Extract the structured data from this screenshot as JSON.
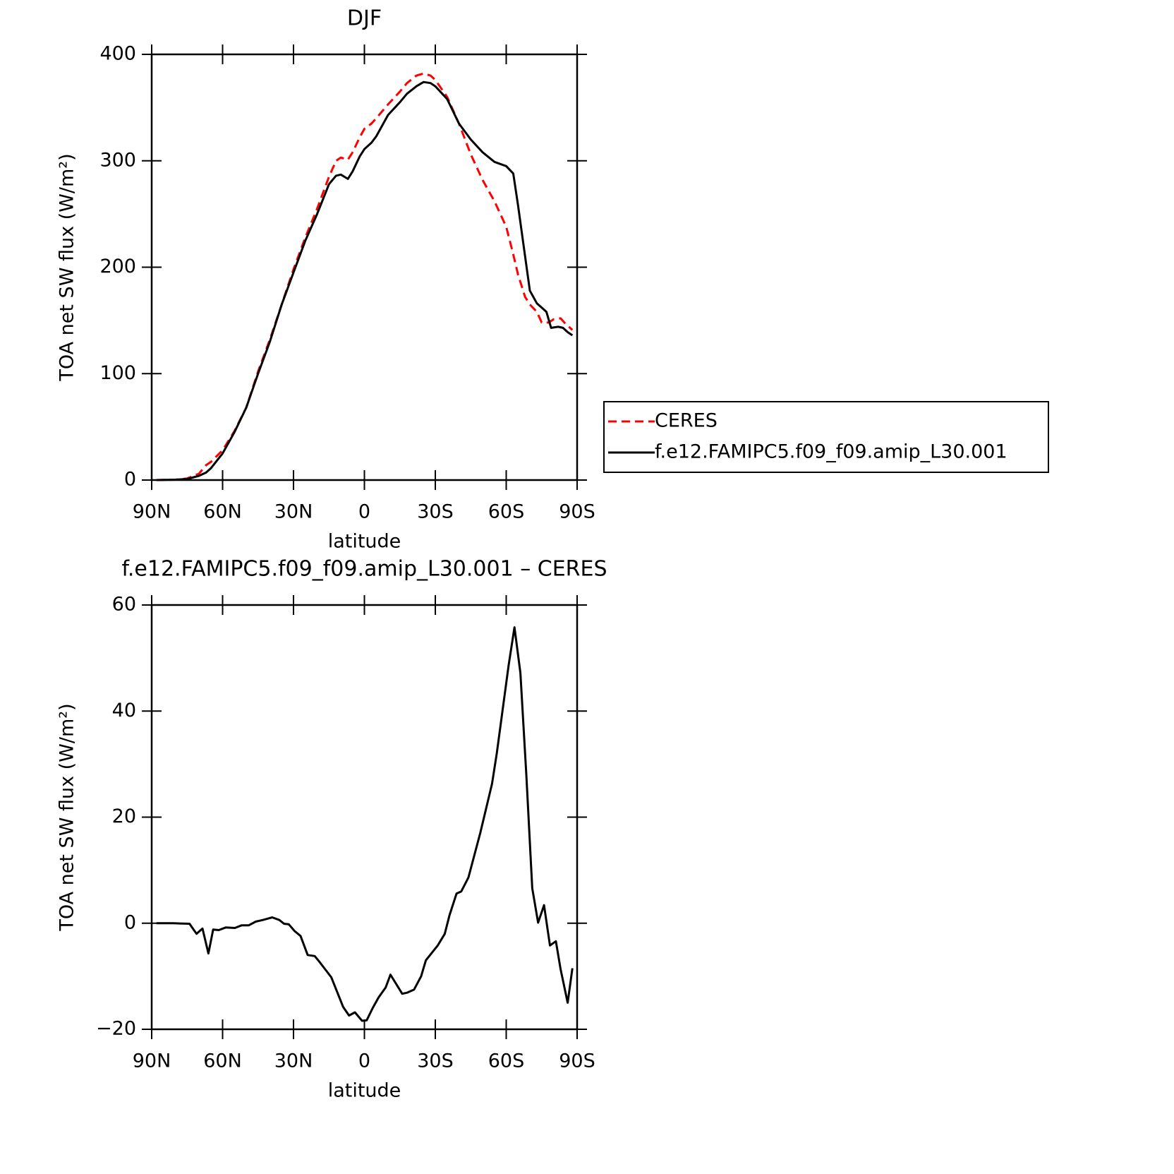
{
  "chart_data": [
    {
      "type": "line",
      "title": "DJF",
      "x_label": "latitude",
      "y_label": "TOA net SW flux (W/m²)",
      "xlim": [
        90,
        -90
      ],
      "xticks": [
        {
          "value": 90,
          "label": "90N"
        },
        {
          "value": 60,
          "label": "60N"
        },
        {
          "value": 30,
          "label": "30N"
        },
        0,
        {
          "value": -30,
          "label": "30S"
        },
        {
          "value": -60,
          "label": "60S"
        },
        {
          "value": -90,
          "label": "90S"
        }
      ],
      "ylim": [
        0,
        400
      ],
      "yticks": [
        0,
        100,
        200,
        300,
        400
      ],
      "legend": "outside-right",
      "series": [
        {
          "name": "CERES",
          "color": "#ff0000",
          "style": "dashed",
          "x": [
            88,
            80,
            75,
            70,
            67,
            65,
            60,
            55,
            50,
            45,
            40,
            35,
            30,
            25,
            20,
            15,
            12,
            10,
            7,
            5,
            2,
            0,
            -3,
            -5,
            -10,
            -15,
            -18,
            -22,
            -25,
            -28,
            -30,
            -35,
            -40,
            -45,
            -50,
            -55,
            -60,
            -63,
            -65,
            -68,
            -70,
            -73,
            -75,
            -78,
            -80,
            -83,
            -85,
            -88
          ],
          "values": [
            0,
            0.3,
            1.5,
            6,
            14,
            17,
            28,
            46,
            68,
            102,
            132,
            165,
            198,
            228,
            255,
            285,
            300,
            303,
            301,
            308,
            322,
            330,
            335,
            340,
            353,
            365,
            373,
            380,
            382,
            380,
            376,
            360,
            335,
            306,
            282,
            262,
            238,
            212,
            193,
            172,
            165,
            158,
            148,
            148,
            151,
            152,
            147,
            141
          ]
        },
        {
          "name": "f.e12.FAMIPC5.f09_f09.amip_L30.001",
          "color": "#000000",
          "style": "solid",
          "x": [
            88,
            80,
            75,
            70,
            67,
            65,
            60,
            55,
            50,
            45,
            40,
            35,
            30,
            25,
            20,
            15,
            12,
            10,
            7,
            5,
            2,
            0,
            -3,
            -5,
            -10,
            -15,
            -18,
            -22,
            -25,
            -28,
            -30,
            -35,
            -40,
            -45,
            -50,
            -55,
            -60,
            -63,
            -65,
            -68,
            -70,
            -73,
            -75,
            -77,
            -79,
            -82,
            -84,
            -86,
            -88
          ],
          "values": [
            0,
            0.3,
            1,
            4,
            7,
            11,
            25,
            45,
            68,
            100,
            130,
            165,
            195,
            225,
            250,
            278,
            286,
            287,
            283,
            290,
            304,
            311,
            317,
            323,
            343,
            355,
            363,
            370,
            374,
            373,
            370,
            358,
            335,
            320,
            308,
            299,
            295,
            288,
            258,
            210,
            178,
            166,
            162,
            158,
            143,
            144,
            143,
            139,
            136
          ]
        }
      ]
    },
    {
      "type": "line",
      "title": "f.e12.FAMIPC5.f09_f09.amip_L30.001 – CERES",
      "x_label": "latitude",
      "y_label": "TOA net SW flux (W/m²)",
      "xlim": [
        90,
        -90
      ],
      "xticks": [
        {
          "value": 90,
          "label": "90N"
        },
        {
          "value": 60,
          "label": "60N"
        },
        {
          "value": 30,
          "label": "30N"
        },
        0,
        {
          "value": -30,
          "label": "30S"
        },
        {
          "value": -60,
          "label": "60S"
        },
        {
          "value": -90,
          "label": "90S"
        }
      ],
      "ylim": [
        -20,
        60
      ],
      "yticks": [
        {
          "value": -20,
          "label": "−20"
        },
        0,
        20,
        40,
        60
      ],
      "series": [
        {
          "color": "#000000",
          "style": "solid",
          "x": [
            88,
            81,
            74,
            71,
            68.5,
            66,
            64,
            61.6,
            58.7,
            54.8,
            52,
            49,
            46,
            43,
            39,
            36,
            34,
            32,
            29.5,
            27,
            24,
            21,
            19,
            14,
            9,
            6.5,
            4,
            1,
            -1,
            -3.5,
            -6,
            -9,
            -11,
            -16,
            -18,
            -21,
            -24,
            -26,
            -31,
            -34,
            -36,
            -39,
            -41,
            -44,
            -49,
            -54,
            -56,
            -61,
            -63.5,
            -66,
            -68.5,
            -71,
            -73.5,
            -76,
            -78.5,
            -81,
            -83,
            -86,
            -88
          ],
          "values": [
            0,
            0,
            -0.1,
            -2,
            -1,
            -5.7,
            -1.2,
            -1.3,
            -0.8,
            -0.9,
            -0.4,
            -0.4,
            0.3,
            0.6,
            1.1,
            0.6,
            -0.1,
            -0.2,
            -1.5,
            -2.4,
            -6,
            -6.2,
            -7.3,
            -10.2,
            -15.8,
            -17.4,
            -16.8,
            -18.4,
            -18.3,
            -16,
            -14,
            -12.1,
            -9.7,
            -13.3,
            -13.1,
            -12.5,
            -10,
            -7,
            -4.2,
            -2,
            1.5,
            5.6,
            6,
            8.6,
            17,
            26.3,
            32,
            48.6,
            55.8,
            47.2,
            28,
            6.6,
            0.1,
            3.4,
            -4.2,
            -3.4,
            -8.7,
            -15,
            -8.5
          ]
        }
      ]
    }
  ]
}
